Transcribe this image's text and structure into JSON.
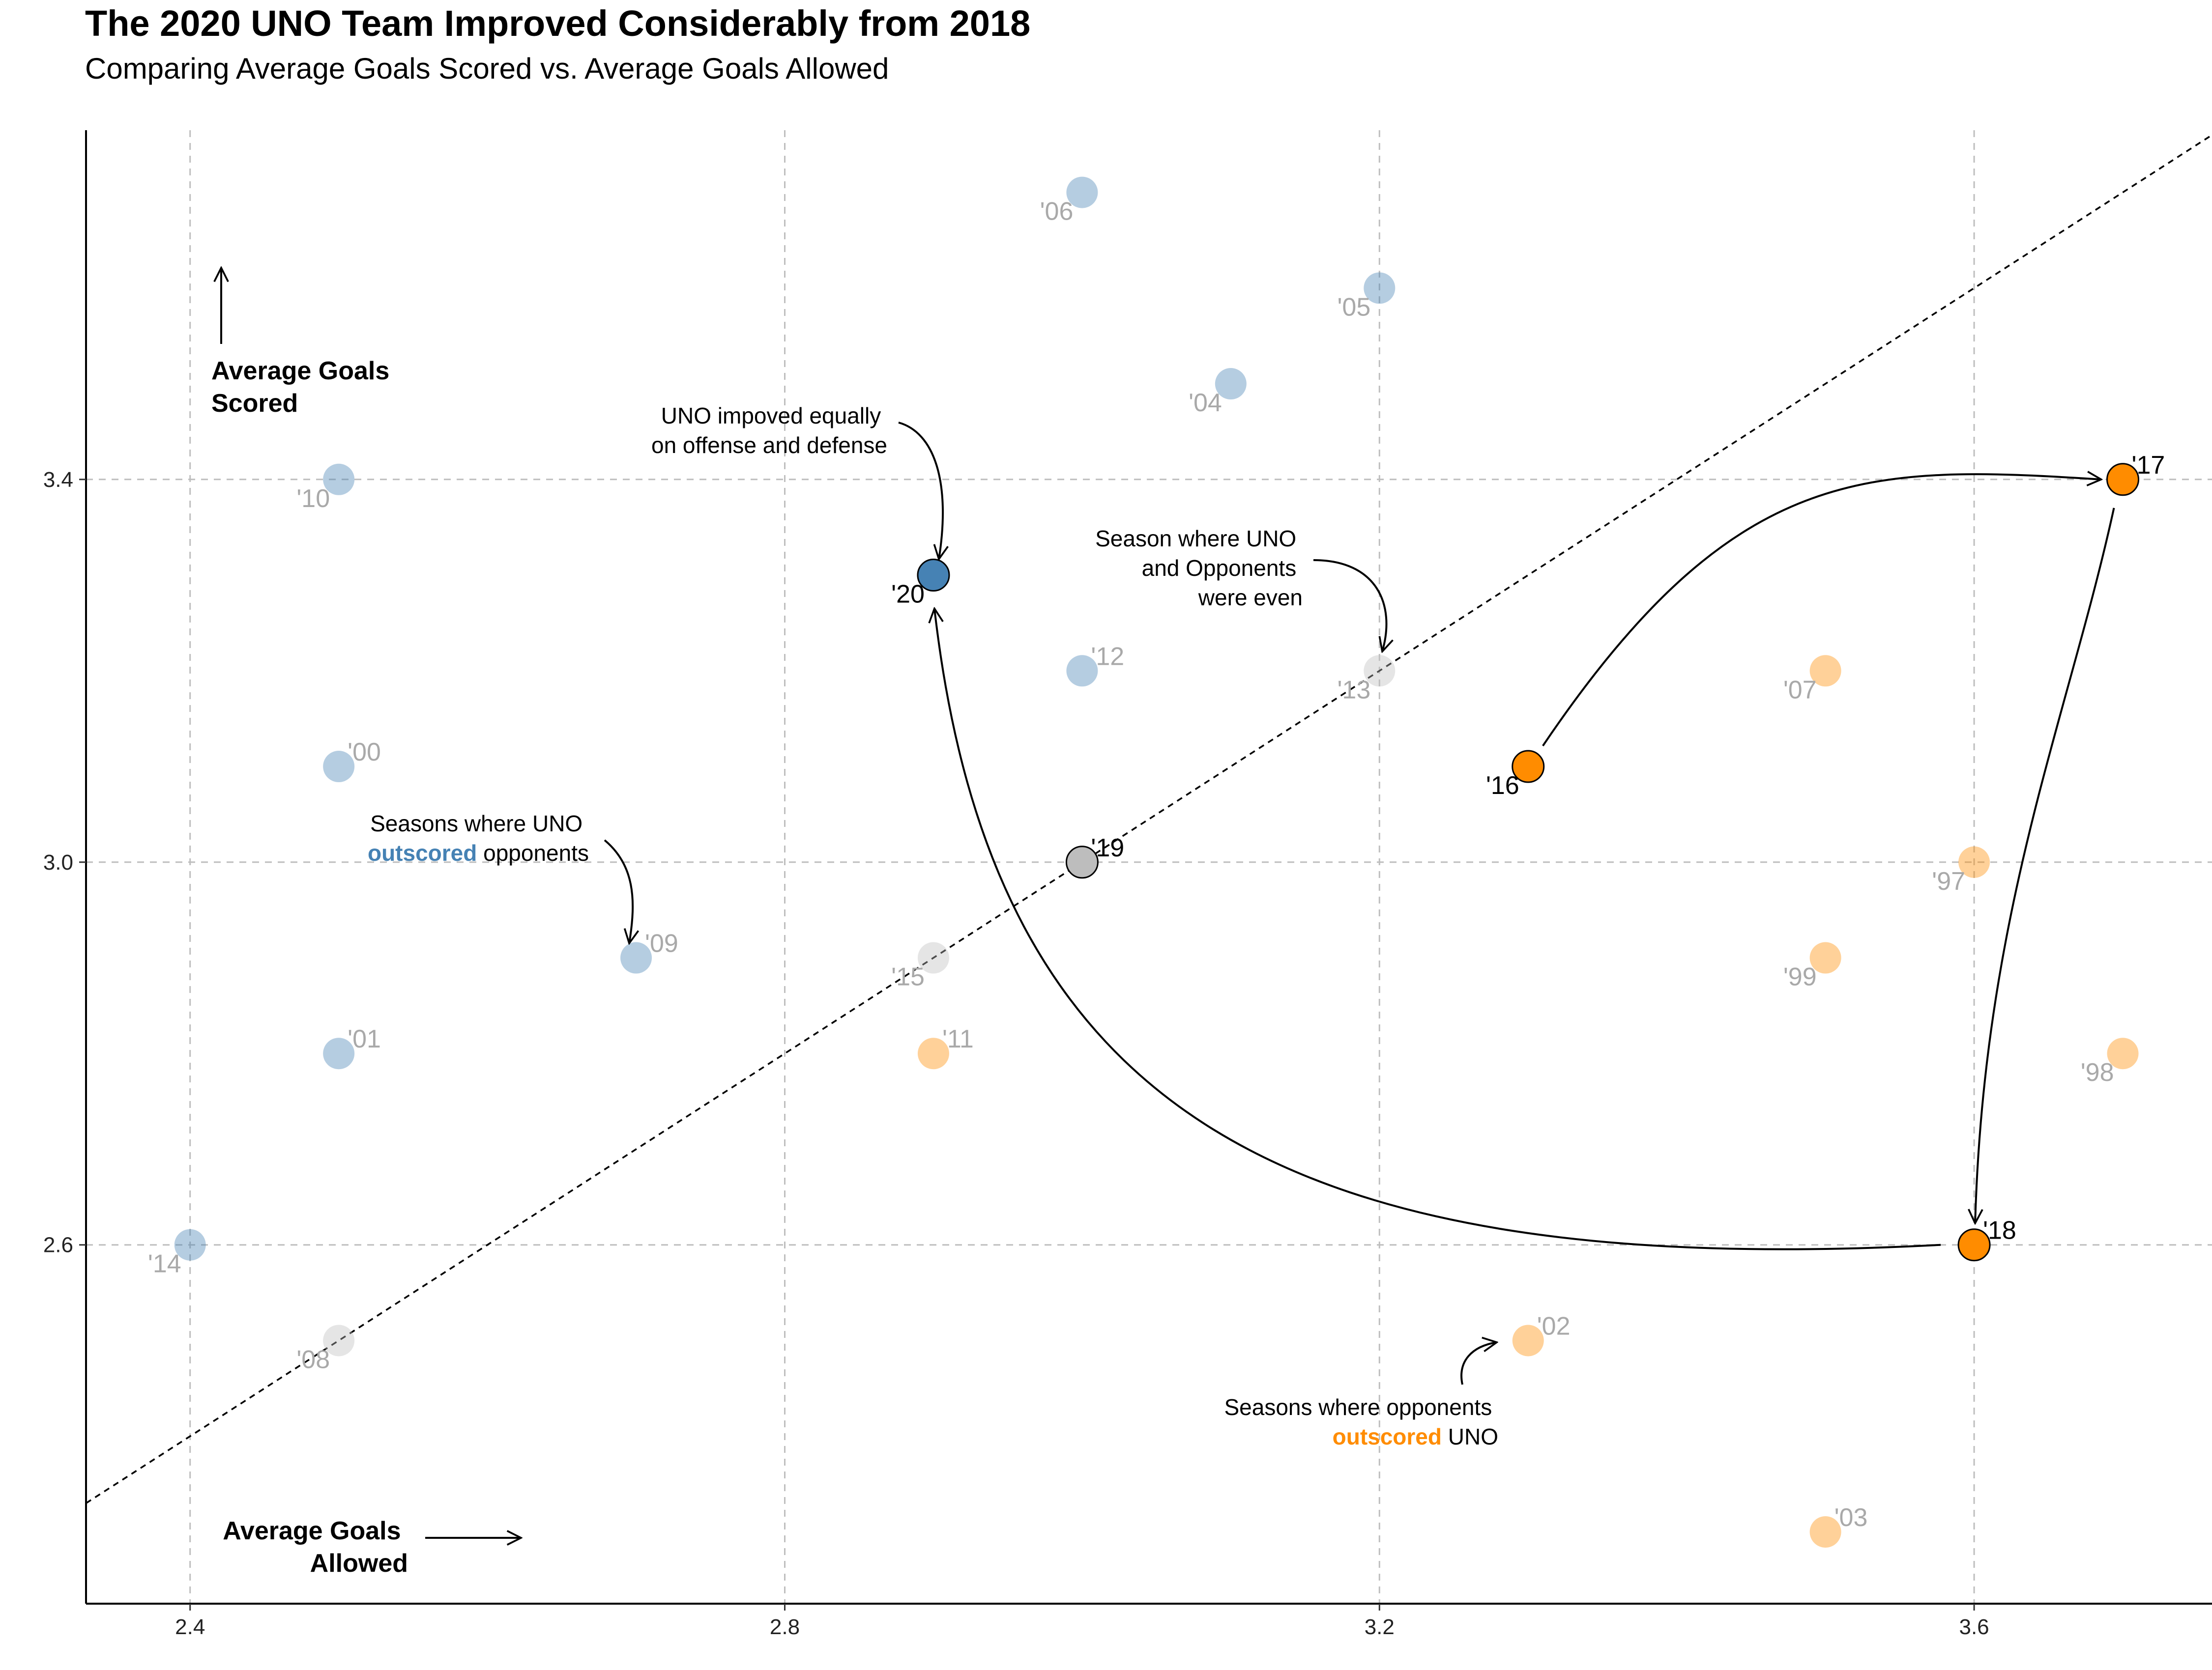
{
  "chart_data": {
    "type": "scatter",
    "title": "The 2020 UNO Team Improved Considerably from 2018",
    "subtitle": "Comparing Average Goals Scored vs. Average Goals Allowed",
    "xlabel": "",
    "ylabel": "",
    "xlim": [
      2.33,
      3.76
    ],
    "ylim": [
      2.225,
      3.765
    ],
    "x_ticks": [
      {
        "value": 2.4,
        "label": "2.4"
      },
      {
        "value": 2.8,
        "label": "2.8"
      },
      {
        "value": 3.2,
        "label": "3.2"
      },
      {
        "value": 3.6,
        "label": "3.6"
      }
    ],
    "y_ticks": [
      {
        "value": 2.6,
        "label": "2.6"
      },
      {
        "value": 3.0,
        "label": "3.0"
      },
      {
        "value": 3.4,
        "label": "3.4"
      }
    ],
    "grid": true,
    "reference_line": "y = x",
    "points": [
      {
        "label": "'00",
        "x": 2.5,
        "y": 3.1,
        "group": "outscored",
        "highlight": false
      },
      {
        "label": "'01",
        "x": 2.5,
        "y": 2.8,
        "group": "outscored",
        "highlight": false
      },
      {
        "label": "'04",
        "x": 3.1,
        "y": 3.5,
        "group": "outscored",
        "highlight": false
      },
      {
        "label": "'05",
        "x": 3.2,
        "y": 3.6,
        "group": "outscored",
        "highlight": false
      },
      {
        "label": "'06",
        "x": 3.0,
        "y": 3.7,
        "group": "outscored",
        "highlight": false
      },
      {
        "label": "'09",
        "x": 2.7,
        "y": 2.9,
        "group": "outscored",
        "highlight": false
      },
      {
        "label": "'10",
        "x": 2.5,
        "y": 3.4,
        "group": "outscored",
        "highlight": false
      },
      {
        "label": "'12",
        "x": 3.0,
        "y": 3.2,
        "group": "outscored",
        "highlight": false
      },
      {
        "label": "'14",
        "x": 2.4,
        "y": 2.6,
        "group": "outscored",
        "highlight": false
      },
      {
        "label": "'20",
        "x": 2.9,
        "y": 3.3,
        "group": "outscored",
        "highlight": true
      },
      {
        "label": "'08",
        "x": 2.5,
        "y": 2.5,
        "group": "even",
        "highlight": false
      },
      {
        "label": "'13",
        "x": 3.2,
        "y": 3.2,
        "group": "even",
        "highlight": false
      },
      {
        "label": "'15",
        "x": 2.9,
        "y": 2.9,
        "group": "even",
        "highlight": false
      },
      {
        "label": "'19",
        "x": 3.0,
        "y": 3.0,
        "group": "even",
        "highlight": true
      },
      {
        "label": "'97",
        "x": 3.6,
        "y": 3.0,
        "group": "outscored_by",
        "highlight": false
      },
      {
        "label": "'98",
        "x": 3.7,
        "y": 2.8,
        "group": "outscored_by",
        "highlight": false
      },
      {
        "label": "'99",
        "x": 3.5,
        "y": 2.9,
        "group": "outscored_by",
        "highlight": false
      },
      {
        "label": "'02",
        "x": 3.3,
        "y": 2.5,
        "group": "outscored_by",
        "highlight": false
      },
      {
        "label": "'03",
        "x": 3.5,
        "y": 2.3,
        "group": "outscored_by",
        "highlight": false
      },
      {
        "label": "'07",
        "x": 3.5,
        "y": 3.2,
        "group": "outscored_by",
        "highlight": false
      },
      {
        "label": "'11",
        "x": 2.9,
        "y": 2.8,
        "group": "outscored_by",
        "highlight": false
      },
      {
        "label": "'16",
        "x": 3.3,
        "y": 3.1,
        "group": "outscored_by",
        "highlight": true
      },
      {
        "label": "'17",
        "x": 3.7,
        "y": 3.4,
        "group": "outscored_by",
        "highlight": true
      },
      {
        "label": "'18",
        "x": 3.6,
        "y": 2.6,
        "group": "outscored_by",
        "highlight": true
      }
    ],
    "annotations": {
      "y_axis_note": [
        "Average Goals",
        "Scored"
      ],
      "x_axis_note": [
        "Average Goals",
        "Allowed"
      ],
      "improved": [
        "UNO impoved equally",
        "on offense and defense"
      ],
      "even": [
        "Season where UNO",
        "and Opponents",
        "were even"
      ],
      "uno_outscored": {
        "line1": "Seasons where UNO",
        "emph": "outscored",
        "rest": " opponents"
      },
      "opp_outscored": {
        "line1": "Seasons where opponents",
        "emph": "outscored",
        "rest": " UNO"
      }
    },
    "colors": {
      "outscored": "#4682b4",
      "outscored_by": "#ff8c00",
      "even": "#bdbdbd",
      "label_faded": "#a9a9a9",
      "grid": "#bebebe"
    }
  }
}
